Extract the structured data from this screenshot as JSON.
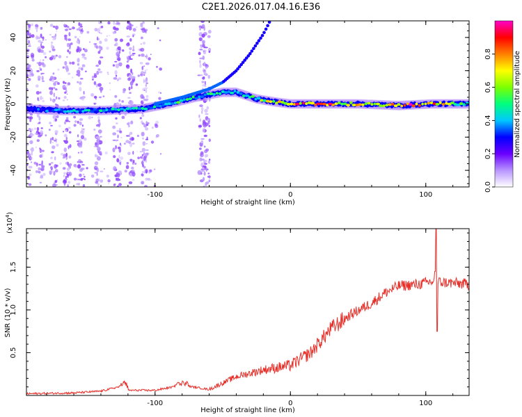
{
  "figure_title": "C2E1.2026.017.04.16.E36",
  "chart_data": [
    {
      "type": "heatmap",
      "name": "spectrogram",
      "title": "C2E1.2026.017.04.16.E36",
      "xlabel": "Height of straight line (km)",
      "ylabel": "Frequency (Hz)",
      "xlim": [
        -195,
        132
      ],
      "ylim": [
        -50,
        50
      ],
      "xticks": [
        -100,
        0,
        100
      ],
      "yticks": [
        -40,
        -20,
        0,
        20,
        40
      ],
      "colorbar": {
        "label": "Normalized spectral amplitude",
        "range": [
          0,
          1
        ],
        "ticks": [
          0.0,
          0.2,
          0.4,
          0.6,
          0.8
        ],
        "tick_labels": [
          "0.0",
          "0.2",
          "0.4",
          "0.6",
          "0.8"
        ],
        "colormap": [
          "#ffffff",
          "#b894ff",
          "#6a00ff",
          "#0000ff",
          "#00c8ff",
          "#00ff7f",
          "#7cff00",
          "#ffff00",
          "#ff8000",
          "#ff0000",
          "#ff00c8"
        ]
      },
      "main_trace": [
        {
          "x": -195,
          "freq": -3,
          "amp": 0.3
        },
        {
          "x": -170,
          "freq": -4,
          "amp": 0.4
        },
        {
          "x": -140,
          "freq": -4,
          "amp": 0.45
        },
        {
          "x": -110,
          "freq": -3,
          "amp": 0.45
        },
        {
          "x": -90,
          "freq": 0,
          "amp": 0.5
        },
        {
          "x": -70,
          "freq": 4,
          "amp": 0.5
        },
        {
          "x": -50,
          "freq": 7,
          "amp": 0.45
        },
        {
          "x": -40,
          "freq": 7,
          "amp": 0.4
        },
        {
          "x": -25,
          "freq": 3,
          "amp": 0.55
        },
        {
          "x": -10,
          "freq": 1,
          "amp": 0.75
        },
        {
          "x": 0,
          "freq": 0,
          "amp": 0.8
        },
        {
          "x": 20,
          "freq": 0,
          "amp": 0.9
        },
        {
          "x": 50,
          "freq": 0,
          "amp": 0.7
        },
        {
          "x": 80,
          "freq": -1,
          "amp": 0.9
        },
        {
          "x": 105,
          "freq": 0,
          "amp": 0.9
        },
        {
          "x": 132,
          "freq": 0,
          "amp": 0.4
        }
      ],
      "rising_branch": [
        {
          "x": -100,
          "freq": 0
        },
        {
          "x": -80,
          "freq": 4
        },
        {
          "x": -60,
          "freq": 9
        },
        {
          "x": -50,
          "freq": 13
        },
        {
          "x": -40,
          "freq": 20
        },
        {
          "x": -30,
          "freq": 30
        },
        {
          "x": -20,
          "freq": 42
        },
        {
          "x": -15,
          "freq": 50
        }
      ],
      "noise_columns_x": [
        -193,
        -185,
        -175,
        -165,
        -155,
        -142,
        -128,
        -118,
        -108,
        -65,
        -62
      ]
    },
    {
      "type": "line",
      "name": "snr",
      "xlabel": "Height of straight line (km)",
      "ylabel": "SNR (10 * v/v)",
      "scale_note": "(x10",
      "scale_exp": "4",
      "xlim": [
        -195,
        132
      ],
      "ylim": [
        0,
        1.95
      ],
      "xticks": [
        -100,
        0,
        100
      ],
      "yticks": [
        0.5,
        1.0,
        1.5
      ],
      "ytick_labels": [
        "0.5",
        "1.0",
        "1.5"
      ],
      "color": "#e8302a",
      "series": [
        {
          "x": -195,
          "y": 0.02
        },
        {
          "x": -160,
          "y": 0.03
        },
        {
          "x": -140,
          "y": 0.05
        },
        {
          "x": -120,
          "y": 0.06
        },
        {
          "x": -122,
          "y": 0.12
        },
        {
          "x": -100,
          "y": 0.06
        },
        {
          "x": -80,
          "y": 0.12
        },
        {
          "x": -60,
          "y": 0.07
        },
        {
          "x": -40,
          "y": 0.22
        },
        {
          "x": -20,
          "y": 0.3
        },
        {
          "x": 0,
          "y": 0.35
        },
        {
          "x": 15,
          "y": 0.5
        },
        {
          "x": 30,
          "y": 0.78
        },
        {
          "x": 45,
          "y": 0.95
        },
        {
          "x": 60,
          "y": 1.08
        },
        {
          "x": 70,
          "y": 1.2
        },
        {
          "x": 80,
          "y": 1.28
        },
        {
          "x": 95,
          "y": 1.3
        },
        {
          "x": 104,
          "y": 1.33
        },
        {
          "x": 107,
          "y": 1.45
        },
        {
          "x": 108,
          "y": 1.95
        },
        {
          "x": 109,
          "y": 0.75
        },
        {
          "x": 110,
          "y": 1.35
        },
        {
          "x": 115,
          "y": 1.32
        },
        {
          "x": 132,
          "y": 1.3
        }
      ]
    }
  ]
}
